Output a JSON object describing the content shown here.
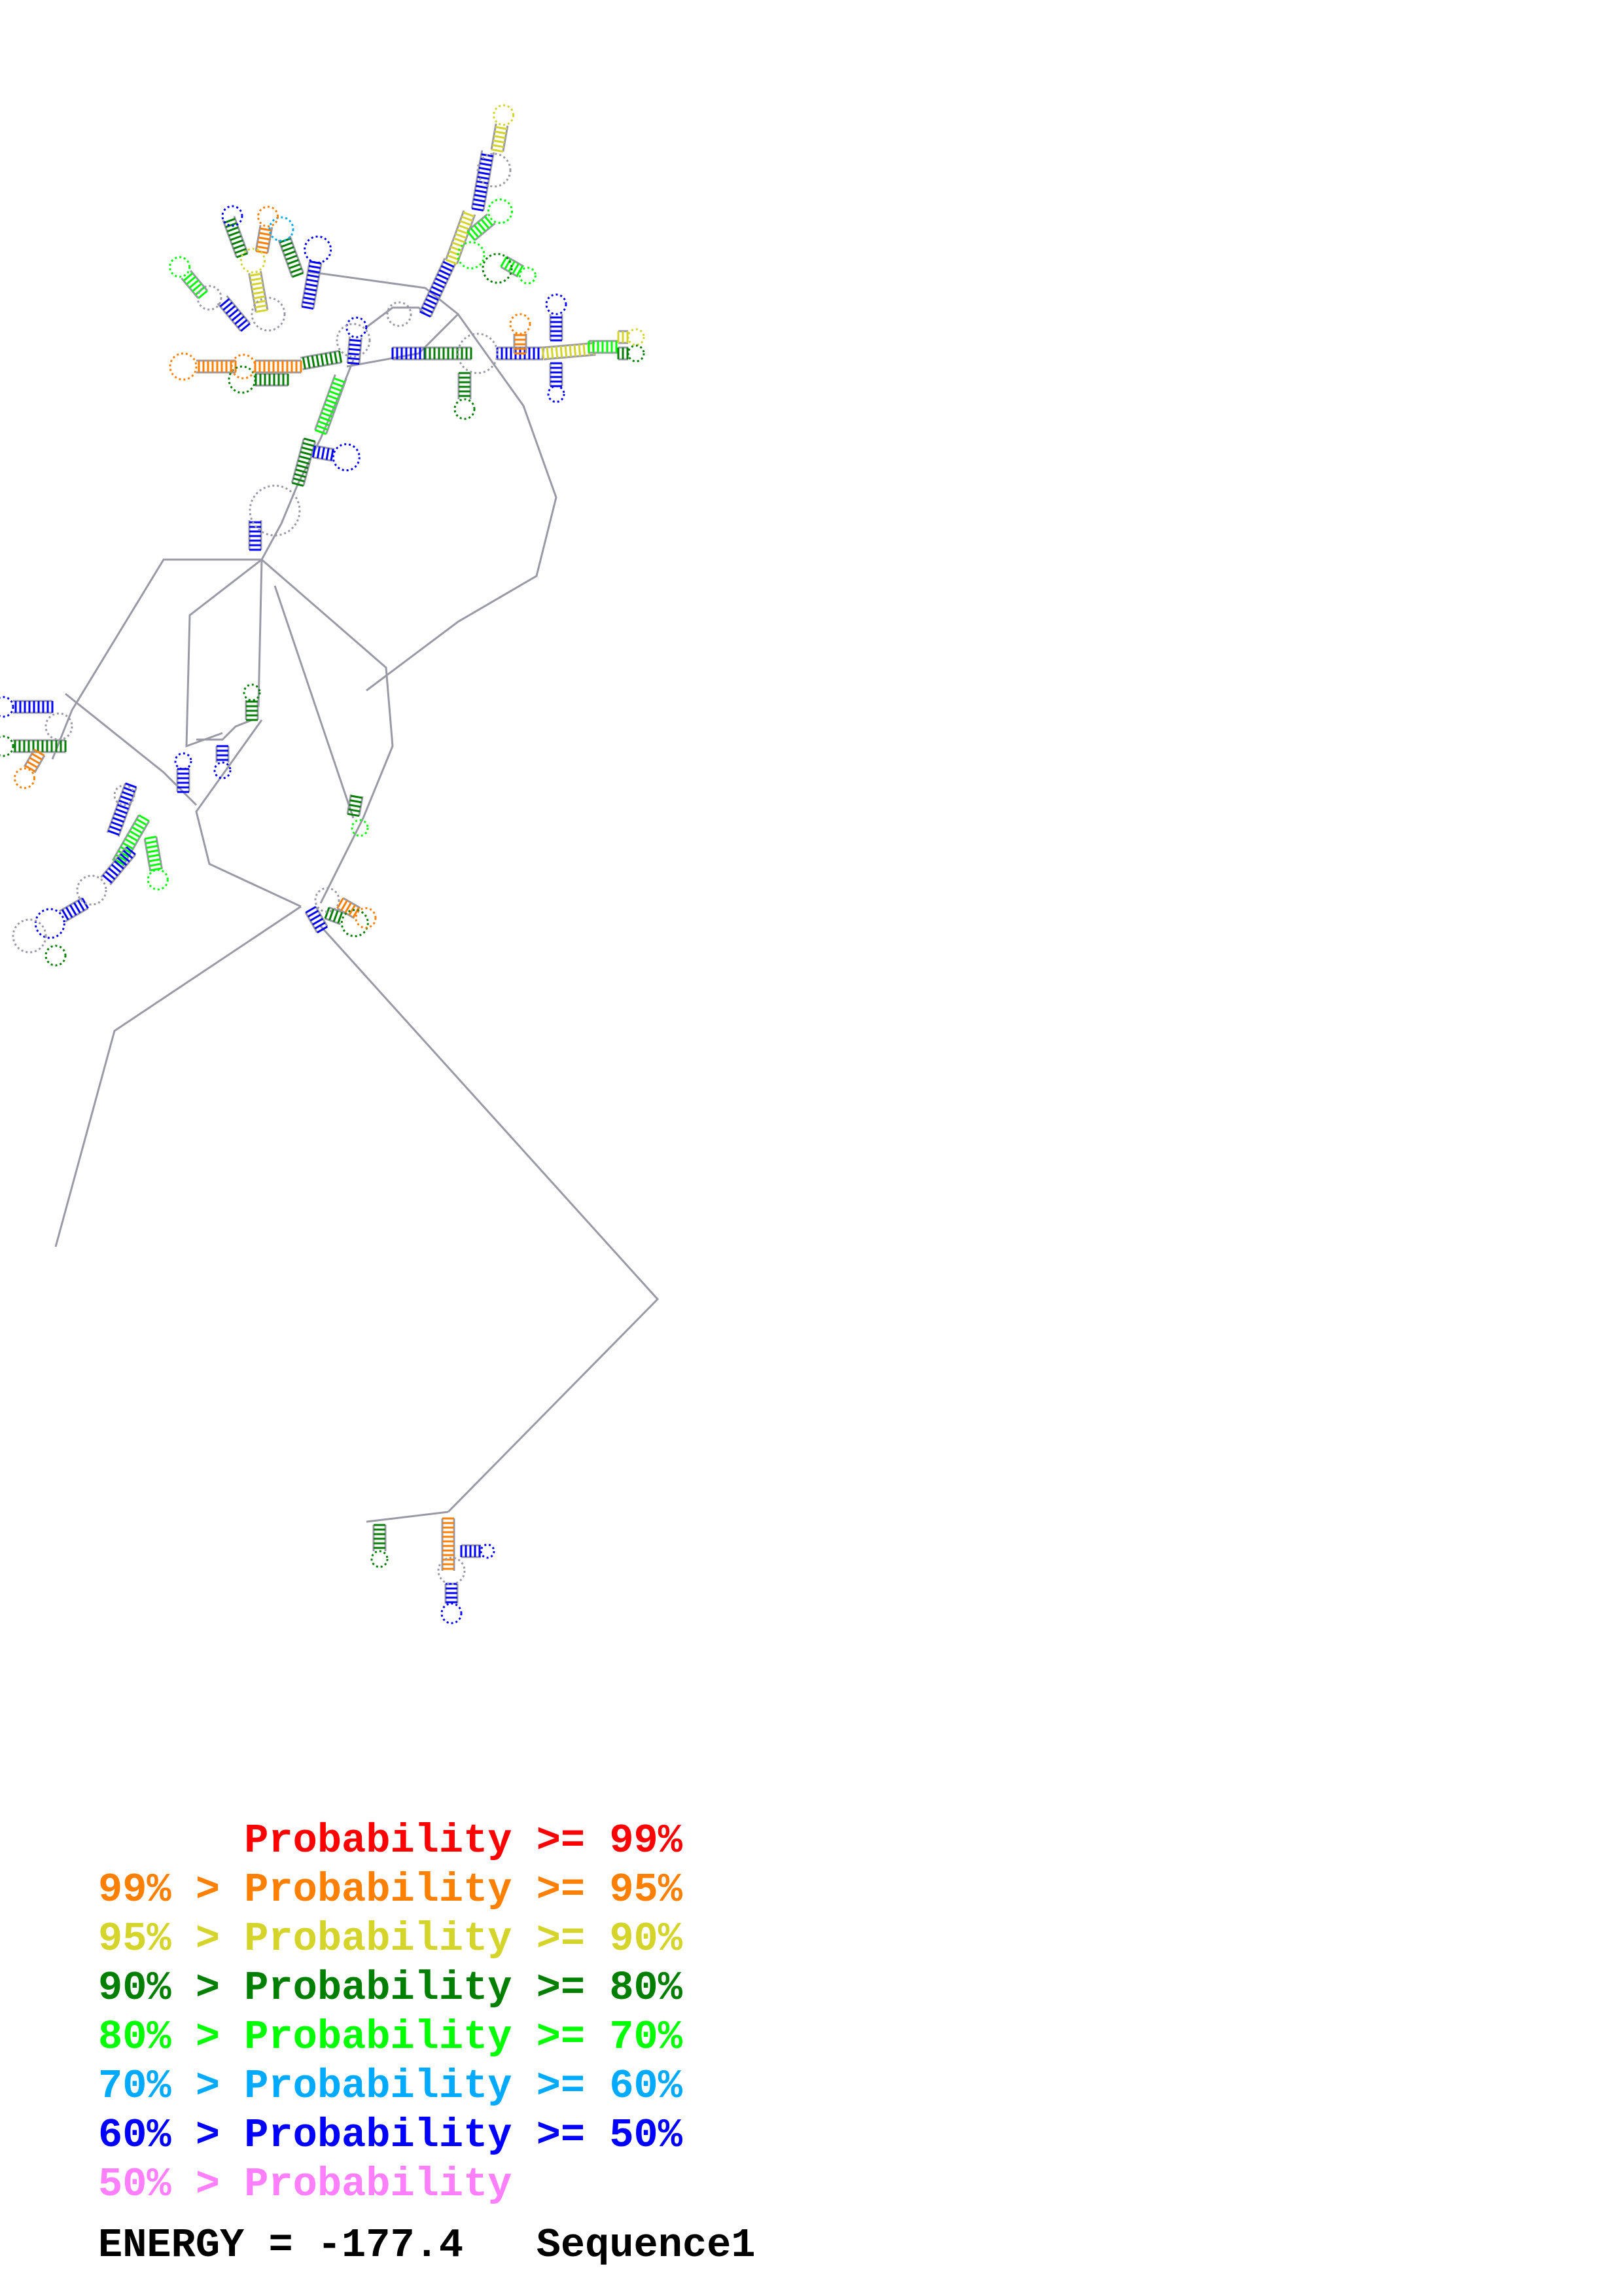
{
  "legend": [
    {
      "text": "      Probability >= 99%",
      "color": "#ff0000"
    },
    {
      "text": "99% > Probability >= 95%",
      "color": "#ff7f00"
    },
    {
      "text": "95% > Probability >= 90%",
      "color": "#d4d42a"
    },
    {
      "text": "90% > Probability >= 80%",
      "color": "#007f00"
    },
    {
      "text": "80% > Probability >= 70%",
      "color": "#00ff00"
    },
    {
      "text": "70% > Probability >= 60%",
      "color": "#00aaff"
    },
    {
      "text": "60% > Probability >= 50%",
      "color": "#0000ff"
    },
    {
      "text": "50% > Probability",
      "color": "#ff7fff"
    }
  ],
  "footer": {
    "energy": "ENERGY = -177.4",
    "sequence": "Sequence1"
  },
  "colors": {
    "backbone": "#9a9aa6",
    "pair": "#4a4a9a",
    "nucleotide": "#ff99ff"
  }
}
